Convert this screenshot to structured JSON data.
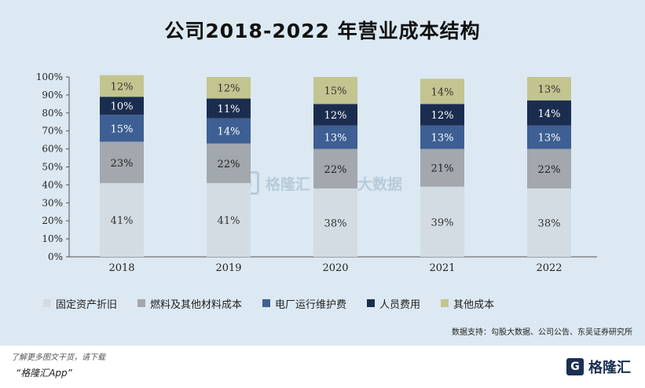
{
  "title": "公司2018-2022 年营业成本结构",
  "source": "数据支持：勾股大数据、公司公告、东吴证券研究所",
  "watermark": {
    "brand": "格隆汇",
    "logo_letter": "G",
    "secondary": "勾股大数据"
  },
  "footer": {
    "note": "了解更多图文干货，请下载",
    "app": "“格隆汇App”"
  },
  "brand": {
    "name": "格隆汇",
    "logo_letter": "G"
  },
  "colors": {
    "panel_bg": "#dce9f3",
    "fixed_assets": "#d3dce3",
    "fuel_materials": "#a2a8ad",
    "plant_maintenance": "#3e5f93",
    "personnel": "#1b2d4f",
    "other": "#c3c48f"
  },
  "chart_data": {
    "type": "bar",
    "stacked": true,
    "categories": [
      "2018",
      "2019",
      "2020",
      "2021",
      "2022"
    ],
    "y_ticks": [
      "0%",
      "10%",
      "20%",
      "30%",
      "40%",
      "50%",
      "60%",
      "70%",
      "80%",
      "90%",
      "100%"
    ],
    "ylim": [
      0,
      100
    ],
    "legend_position": "bottom",
    "series": [
      {
        "name": "固定资产折旧",
        "color": "#d3dce3",
        "label_color": "#333333",
        "values": [
          41,
          41,
          38,
          39,
          38
        ],
        "labels": [
          "41%",
          "41%",
          "38%",
          "39%",
          "38%"
        ]
      },
      {
        "name": "燃料及其他材料成本",
        "color": "#a2a8ad",
        "label_color": "#222222",
        "values": [
          23,
          22,
          22,
          21,
          22
        ],
        "labels": [
          "23%",
          "22%",
          "22%",
          "21%",
          "22%"
        ]
      },
      {
        "name": "电厂运行维护费",
        "color": "#3e5f93",
        "label_color": "#ffffff",
        "values": [
          15,
          14,
          13,
          13,
          13
        ],
        "labels": [
          "15%",
          "14%",
          "13%",
          "13%",
          "13%"
        ]
      },
      {
        "name": "人员费用",
        "color": "#1b2d4f",
        "label_color": "#ffffff",
        "values": [
          10,
          11,
          12,
          12,
          14
        ],
        "labels": [
          "10%",
          "11%",
          "12%",
          "12%",
          "14%"
        ]
      },
      {
        "name": "其他成本",
        "color": "#c3c48f",
        "label_color": "#333333",
        "values": [
          12,
          12,
          15,
          14,
          13
        ],
        "labels": [
          "12%",
          "12%",
          "15%",
          "14%",
          "13%"
        ]
      }
    ]
  }
}
